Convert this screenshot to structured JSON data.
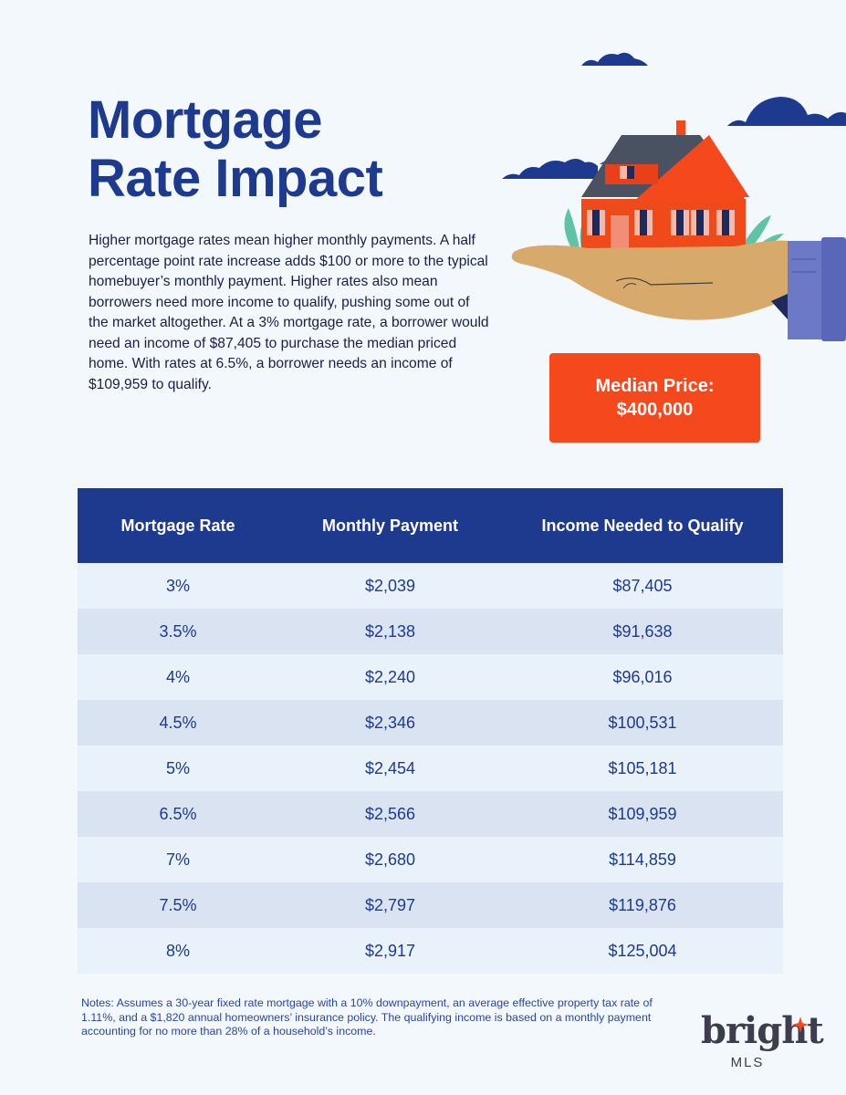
{
  "header": {
    "title_line1": "Mortgage",
    "title_line2": "Rate Impact",
    "intro": "Higher mortgage rates mean higher monthly payments. A half percentage point rate increase adds $100 or more to the typical homebuyer’s monthly payment. Higher rates also mean borrowers need more income to qualify, pushing some out of the market altogether. At a 3% mortgage rate, a borrower would need an income of $87,405 to purchase the median priced home. With rates at 6.5%, a borrower needs an income of $109,959 to qualify."
  },
  "price_box": {
    "label": "Median Price:",
    "value": "$400,000"
  },
  "table": {
    "headers": [
      "Mortgage Rate",
      "Monthly Payment",
      "Income Needed to Qualify"
    ],
    "rows": [
      [
        "3%",
        "$2,039",
        "$87,405"
      ],
      [
        "3.5%",
        "$2,138",
        "$91,638"
      ],
      [
        "4%",
        "$2,240",
        "$96,016"
      ],
      [
        "4.5%",
        "$2,346",
        "$100,531"
      ],
      [
        "5%",
        "$2,454",
        "$105,181"
      ],
      [
        "6.5%",
        "$2,566",
        "$109,959"
      ],
      [
        "7%",
        "$2,680",
        "$114,859"
      ],
      [
        "7.5%",
        "$2,797",
        "$119,876"
      ],
      [
        "8%",
        "$2,917",
        "$125,004"
      ]
    ]
  },
  "notes": "Notes: Assumes a 30-year fixed rate mortgage with a 10% downpayment, an average effective property tax rate of 1.11%, and a $1,820 annual homeowners’ insurance policy. The qualifying income is based on a monthly payment accounting for no more than 28% of a household’s income.",
  "logo": {
    "word": "bright",
    "sub": "MLS"
  },
  "colors": {
    "navy": "#1e3a8f",
    "accent_orange": "#f5481c",
    "row_light": "#e9f1fa",
    "row_dark": "#dae3f1",
    "background": "#f2f8fc"
  },
  "icons": [
    "house-in-hand-illustration",
    "cloud-icon",
    "star-sparkle-icon"
  ]
}
